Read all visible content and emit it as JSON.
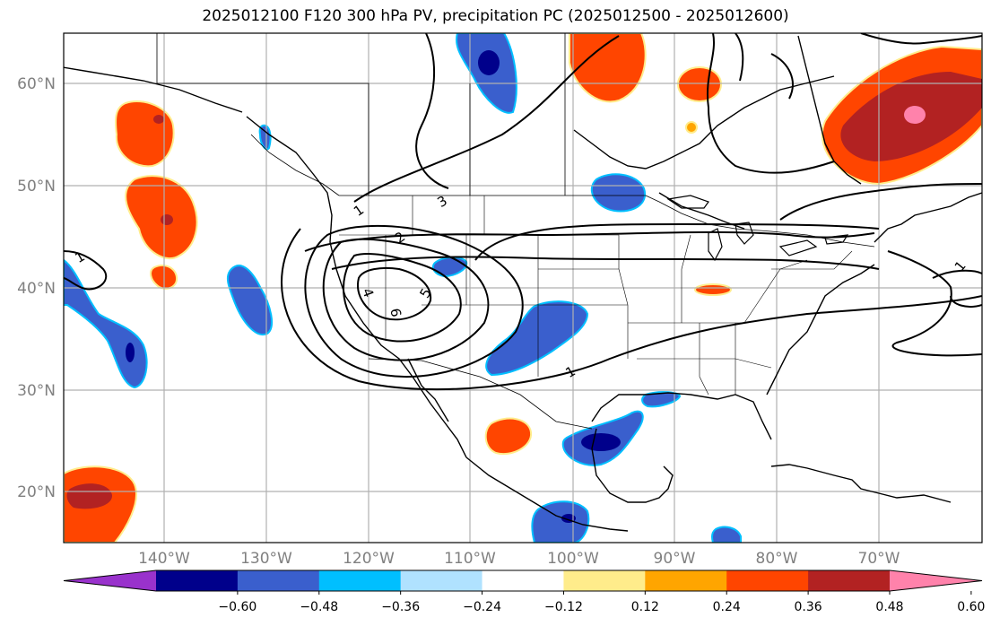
{
  "title": "2025012100 F120 300 hPa PV, precipitation PC (2025012500 - 2025012600)",
  "map": {
    "lat_labels": [
      "20°N",
      "30°N",
      "40°N",
      "50°N",
      "60°N"
    ],
    "lon_labels": [
      "140°W",
      "130°W",
      "120°W",
      "110°W",
      "100°W",
      "90°W",
      "80°W",
      "70°W"
    ],
    "pv_contour_labels": [
      "1",
      "2",
      "3",
      "4",
      "5",
      "6",
      "1",
      "1",
      "1"
    ],
    "projection_extent": {
      "lon": [
        -150,
        -59
      ],
      "lat": [
        15,
        65
      ]
    }
  },
  "colorbar": {
    "ticks": [
      "−0.60",
      "−0.48",
      "−0.36",
      "−0.24",
      "−0.12",
      "0.12",
      "0.24",
      "0.36",
      "0.48",
      "0.60"
    ],
    "colors": [
      "#9932cc",
      "#00008b",
      "#3a5fcd",
      "#00bfff",
      "#b0e2ff",
      "#ffffff",
      "#ffec8b",
      "#ffa500",
      "#ff4500",
      "#b22222",
      "#ff82ab"
    ]
  }
}
